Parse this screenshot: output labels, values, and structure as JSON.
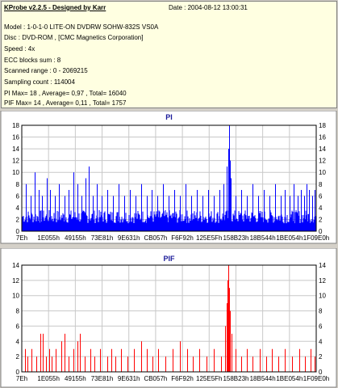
{
  "info": {
    "title": "KProbe v2.2.5 - Designed by Karr",
    "date": "Date : 2004-08-12 13:00:31",
    "model": "Model : 1-0-1-0 LITE-ON DVDRW SOHW-832S  VS0A",
    "disc": "Disc : DVD-ROM ,  [CMC Magnetics Corporation]",
    "speed": "Speed : 4x",
    "ecc": "ECC blocks sum : 8",
    "range": "Scanned range : 0 - 2069215",
    "sampling": "Sampling count : 114004",
    "pi_stats": "PI Max= 18 , Average= 0,97 , Total= 16040",
    "pif_stats": "PIF Max= 14 , Average= 0,11 , Total= 1757"
  },
  "colors": {
    "pi": "#0000ff",
    "pif": "#ff0000",
    "plot_bg": "#ffffff",
    "grid": "#c8c8c8",
    "title": "#1a1a99"
  },
  "chart_data": [
    {
      "type": "bar",
      "title": "PI",
      "xlabel": "",
      "ylabel": "",
      "ylim": [
        0,
        18
      ],
      "yticks": [
        0,
        2,
        4,
        6,
        8,
        10,
        12,
        14,
        16,
        18
      ],
      "x_tick_labels": [
        "7Eh",
        "1E055h",
        "49155h",
        "73E81h",
        "9E631h",
        "CB057h",
        "F6F92h",
        "125E5Fh",
        "158B23h",
        "18B544h",
        "1BE054h",
        "1F09E0h"
      ],
      "xlim": [
        0,
        2069215
      ],
      "grid": true,
      "baseline": 3,
      "spikes": [
        [
          30000,
          8
        ],
        [
          60000,
          6
        ],
        [
          90000,
          10
        ],
        [
          120000,
          7
        ],
        [
          140000,
          6
        ],
        [
          175000,
          9
        ],
        [
          200000,
          7
        ],
        [
          230000,
          6
        ],
        [
          260000,
          8
        ],
        [
          300000,
          6
        ],
        [
          330000,
          7
        ],
        [
          360000,
          10
        ],
        [
          390000,
          8
        ],
        [
          420000,
          6
        ],
        [
          450000,
          9
        ],
        [
          470000,
          11
        ],
        [
          500000,
          6
        ],
        [
          530000,
          8
        ],
        [
          560000,
          6
        ],
        [
          600000,
          7
        ],
        [
          640000,
          6
        ],
        [
          680000,
          8
        ],
        [
          720000,
          6
        ],
        [
          760000,
          7
        ],
        [
          800000,
          6
        ],
        [
          840000,
          8
        ],
        [
          880000,
          6
        ],
        [
          910000,
          7
        ],
        [
          950000,
          6
        ],
        [
          990000,
          8
        ],
        [
          1030000,
          6
        ],
        [
          1070000,
          7
        ],
        [
          1110000,
          6
        ],
        [
          1150000,
          8
        ],
        [
          1190000,
          6
        ],
        [
          1230000,
          7
        ],
        [
          1270000,
          6
        ],
        [
          1310000,
          7
        ],
        [
          1350000,
          6
        ],
        [
          1390000,
          7
        ],
        [
          1420000,
          8
        ],
        [
          1440000,
          11
        ],
        [
          1450000,
          14
        ],
        [
          1455000,
          18
        ],
        [
          1460000,
          12
        ],
        [
          1470000,
          9
        ],
        [
          1500000,
          6
        ],
        [
          1540000,
          7
        ],
        [
          1580000,
          6
        ],
        [
          1620000,
          8
        ],
        [
          1660000,
          6
        ],
        [
          1700000,
          7
        ],
        [
          1740000,
          6
        ],
        [
          1780000,
          8
        ],
        [
          1820000,
          6
        ],
        [
          1850000,
          7
        ],
        [
          1880000,
          6
        ],
        [
          1910000,
          8
        ],
        [
          1940000,
          6
        ],
        [
          1960000,
          7
        ],
        [
          1985000,
          6
        ],
        [
          2000000,
          8
        ],
        [
          2020000,
          7
        ],
        [
          2040000,
          6
        ],
        [
          2060000,
          7
        ]
      ]
    },
    {
      "type": "bar",
      "title": "PIF",
      "xlabel": "",
      "ylabel": "",
      "ylim": [
        0,
        14
      ],
      "yticks": [
        0,
        2,
        4,
        6,
        8,
        10,
        12,
        14
      ],
      "x_tick_labels": [
        "7Eh",
        "1E055h",
        "49155h",
        "73E81h",
        "9E631h",
        "CB057h",
        "F6F92h",
        "125E5Fh",
        "158B23h",
        "18B544h",
        "1BE054h",
        "1F09E0h"
      ],
      "xlim": [
        0,
        2069215
      ],
      "grid": true,
      "baseline": 0,
      "spikes": [
        [
          20000,
          3
        ],
        [
          40000,
          2
        ],
        [
          70000,
          3
        ],
        [
          100000,
          2
        ],
        [
          130000,
          5
        ],
        [
          145000,
          5
        ],
        [
          170000,
          2
        ],
        [
          190000,
          3
        ],
        [
          210000,
          2
        ],
        [
          240000,
          3
        ],
        [
          280000,
          4
        ],
        [
          300000,
          5
        ],
        [
          330000,
          2
        ],
        [
          360000,
          3
        ],
        [
          390000,
          4
        ],
        [
          410000,
          5
        ],
        [
          440000,
          2
        ],
        [
          480000,
          3
        ],
        [
          510000,
          2
        ],
        [
          550000,
          3
        ],
        [
          600000,
          2
        ],
        [
          630000,
          3
        ],
        [
          660000,
          2
        ],
        [
          700000,
          3
        ],
        [
          740000,
          2
        ],
        [
          790000,
          3
        ],
        [
          840000,
          4
        ],
        [
          880000,
          3
        ],
        [
          920000,
          2
        ],
        [
          960000,
          3
        ],
        [
          1010000,
          2
        ],
        [
          1060000,
          3
        ],
        [
          1110000,
          4
        ],
        [
          1160000,
          3
        ],
        [
          1200000,
          2
        ],
        [
          1250000,
          3
        ],
        [
          1300000,
          2
        ],
        [
          1350000,
          3
        ],
        [
          1400000,
          2
        ],
        [
          1430000,
          6
        ],
        [
          1440000,
          9
        ],
        [
          1448000,
          12
        ],
        [
          1453000,
          14
        ],
        [
          1458000,
          11
        ],
        [
          1465000,
          8
        ],
        [
          1475000,
          5
        ],
        [
          1500000,
          3
        ],
        [
          1540000,
          2
        ],
        [
          1580000,
          3
        ],
        [
          1620000,
          2
        ],
        [
          1670000,
          3
        ],
        [
          1720000,
          2
        ],
        [
          1760000,
          3
        ],
        [
          1800000,
          2
        ],
        [
          1850000,
          3
        ],
        [
          1900000,
          2
        ],
        [
          1950000,
          3
        ],
        [
          1990000,
          2
        ],
        [
          2030000,
          3
        ],
        [
          2060000,
          2
        ]
      ]
    }
  ]
}
